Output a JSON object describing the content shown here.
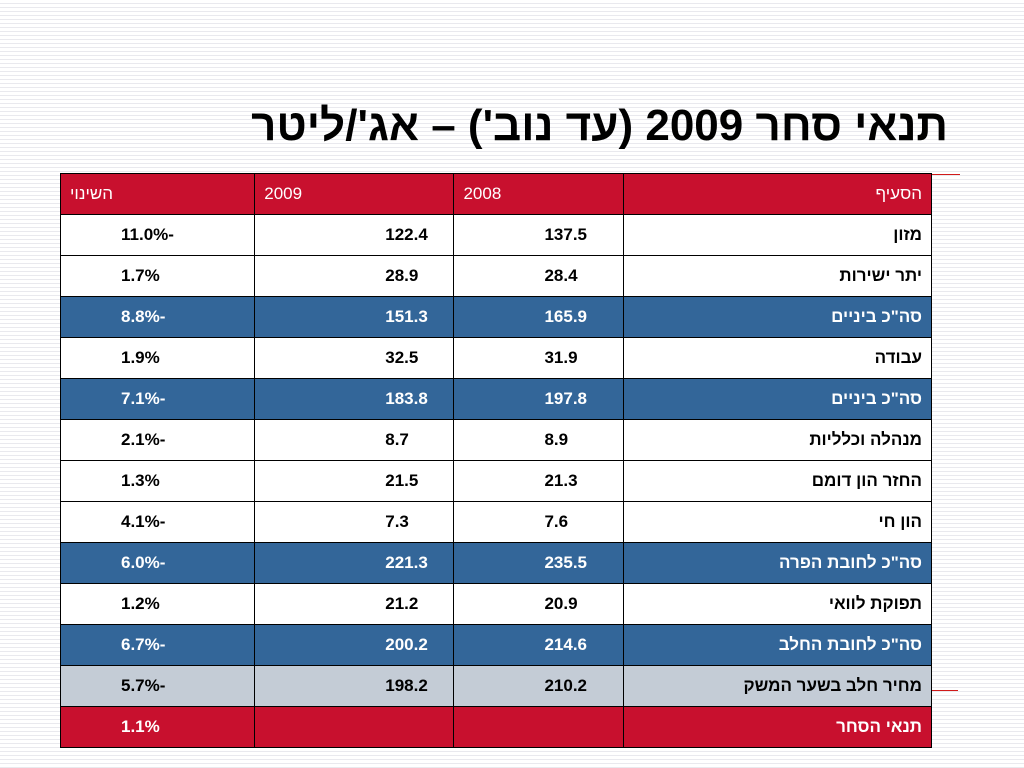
{
  "slide": {
    "title": "תנאי סחר 2009 (עד נוב') – אג'/ליטר"
  },
  "table": {
    "headers": {
      "item": "הסעיף",
      "y2008": "2008",
      "y2009": "2009",
      "change": "השינוי"
    },
    "rows": [
      {
        "item": "מזון",
        "y2008": "137.5",
        "y2009": "122.4",
        "change": "-11.0%"
      },
      {
        "item": "יתר ישירות",
        "y2008": "28.4",
        "y2009": "28.9",
        "change": "1.7%"
      },
      {
        "item": "סה\"כ ביניים",
        "y2008": "165.9",
        "y2009": "151.3",
        "change": "-8.8%"
      },
      {
        "item": "עבודה",
        "y2008": "31.9",
        "y2009": "32.5",
        "change": "1.9%"
      },
      {
        "item": "סה\"כ ביניים",
        "y2008": "197.8",
        "y2009": "183.8",
        "change": "-7.1%"
      },
      {
        "item": "מנהלה וכלליות",
        "y2008": "8.9",
        "y2009": "8.7",
        "change": "-2.1%"
      },
      {
        "item": "החזר הון דומם",
        "y2008": "21.3",
        "y2009": "21.5",
        "change": "1.3%"
      },
      {
        "item": "הון חי",
        "y2008": "7.6",
        "y2009": "7.3",
        "change": "-4.1%"
      },
      {
        "item": "סה\"כ לחובת הפרה",
        "y2008": "235.5",
        "y2009": "221.3",
        "change": "-6.0%"
      },
      {
        "item": "תפוקת לוואי",
        "y2008": "20.9",
        "y2009": "21.2",
        "change": "1.2%"
      },
      {
        "item": "סה\"כ לחובת החלב",
        "y2008": "214.6",
        "y2009": "200.2",
        "change": "-6.7%"
      },
      {
        "item": "מחיר חלב בשער המשק",
        "y2008": "210.2",
        "y2009": "198.2",
        "change": "-5.7%"
      },
      {
        "item": "תנאי הסחר",
        "y2008": "",
        "y2009": "",
        "change": "1.1%"
      }
    ]
  },
  "colors": {
    "header_red": "#c8102e",
    "subtotal_blue": "#336699",
    "price_gray": "#c4ccd6",
    "rule_red": "#d11a1a"
  }
}
